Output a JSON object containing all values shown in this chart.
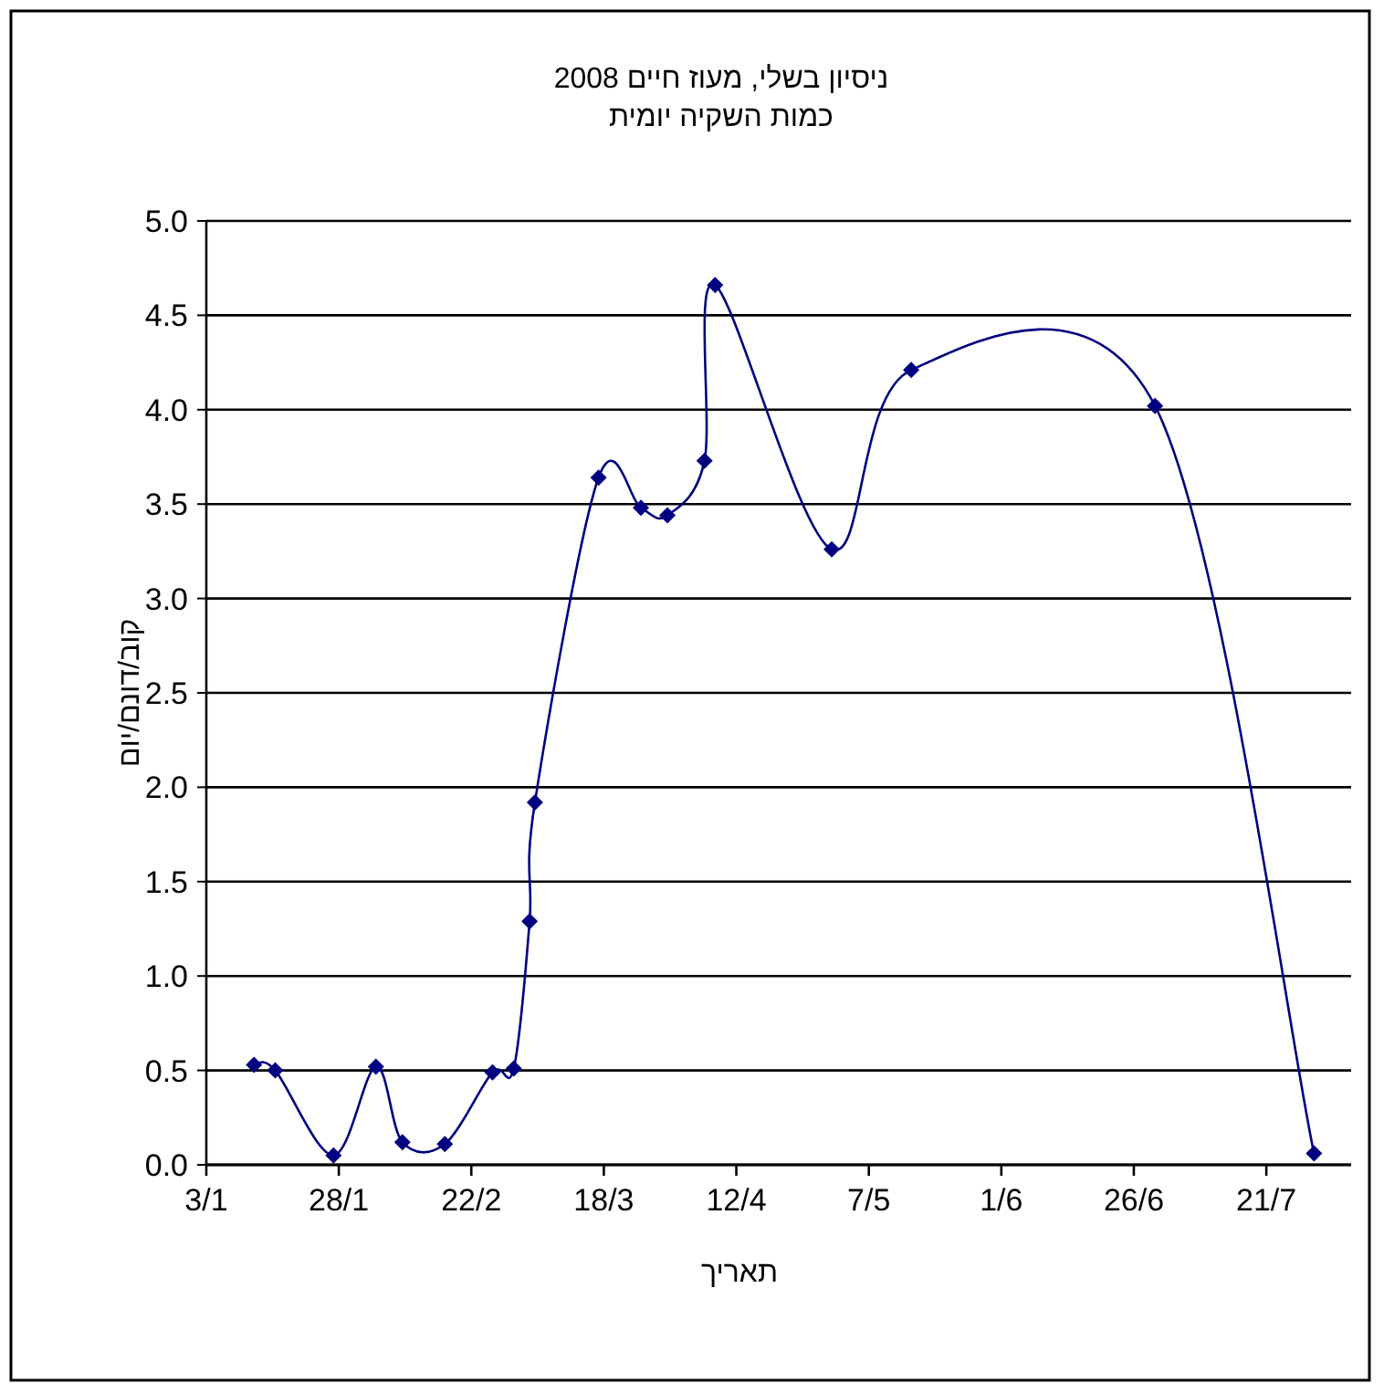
{
  "chart_data": {
    "type": "line",
    "title": "ניסיון בשלי, מעוז חיים 2008",
    "subtitle": "כמות השקיה יומית",
    "xlabel": "תאריך",
    "ylabel": "קוב/דונם/יום",
    "x": [
      "--01-12",
      "--01-16",
      "--01-27",
      "--02-04",
      "--02-09",
      "--02-17",
      "--02-26",
      "--03-01",
      "--03-04",
      "--03-05",
      "--03-17",
      "--03-25",
      "--03-30",
      "--04-06",
      "--04-08",
      "--04-30",
      "--05-15",
      "--06-30",
      "--07-30"
    ],
    "series": [
      {
        "color": "#000080",
        "values": [
          0.53,
          0.5,
          0.05,
          0.52,
          0.12,
          0.11,
          0.49,
          0.51,
          1.29,
          1.92,
          3.64,
          3.48,
          3.44,
          3.73,
          4.66,
          3.26,
          4.21,
          4.02,
          0.06
        ]
      }
    ],
    "xlim": [
      "--01-03",
      "--08-06"
    ],
    "xticks": [
      {
        "value": "--01-03",
        "label": "3/1"
      },
      {
        "value": "--01-28",
        "label": "28/1"
      },
      {
        "value": "--02-22",
        "label": "22/2"
      },
      {
        "value": "--03-18",
        "label": "18/3"
      },
      {
        "value": "--04-12",
        "label": "12/4"
      },
      {
        "value": "--05-07",
        "label": "7/5"
      },
      {
        "value": "--06-01",
        "label": "1/6"
      },
      {
        "value": "--06-26",
        "label": "26/6"
      },
      {
        "value": "--07-21",
        "label": "21/7"
      }
    ],
    "ylim": [
      0,
      5
    ],
    "yticks": [
      {
        "value": 0,
        "label": "0.0"
      },
      {
        "value": 0.5,
        "label": "0.5"
      },
      {
        "value": 1,
        "label": "1.0"
      },
      {
        "value": 1.5,
        "label": "1.5"
      },
      {
        "value": 2,
        "label": "2.0"
      },
      {
        "value": 2.5,
        "label": "2.5"
      },
      {
        "value": 3,
        "label": "3.0"
      },
      {
        "value": 3.5,
        "label": "3.5"
      },
      {
        "value": 4,
        "label": "4.0"
      },
      {
        "value": 4.5,
        "label": "4.5"
      },
      {
        "value": 5,
        "label": "5.0"
      }
    ],
    "grid": "y",
    "marker": "diamond",
    "line_style": "solid"
  }
}
